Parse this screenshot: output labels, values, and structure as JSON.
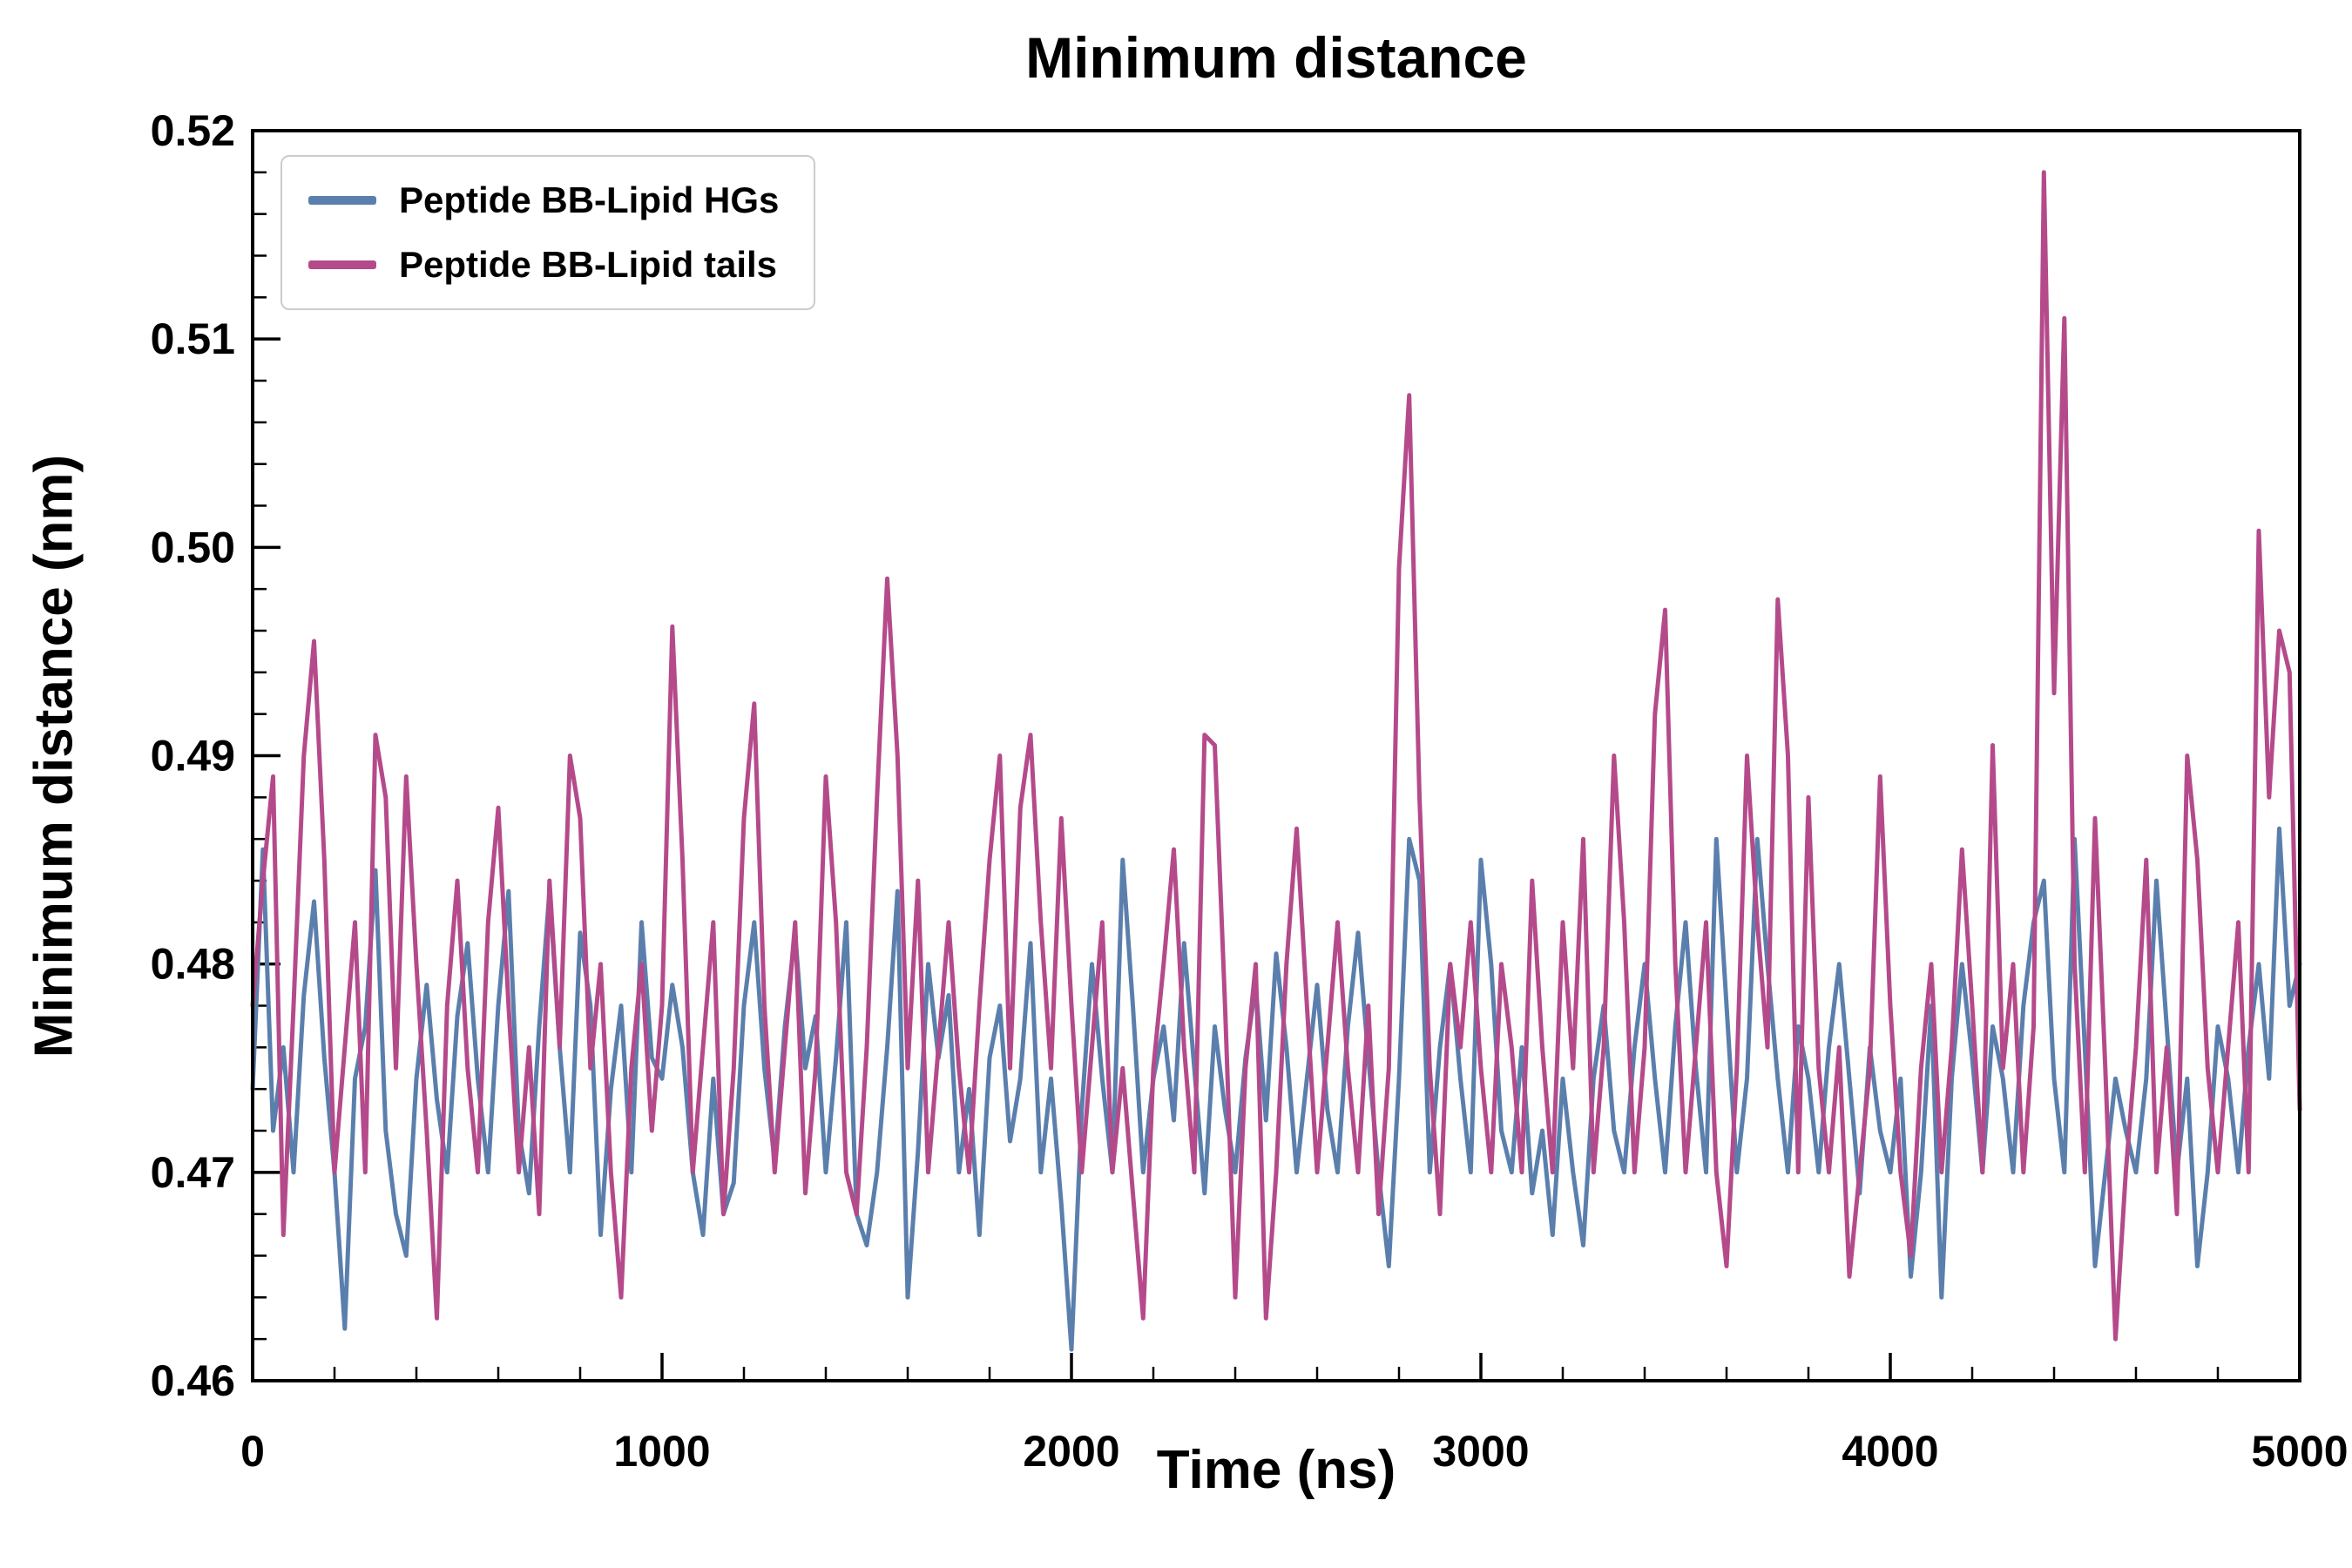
{
  "figure": {
    "background": "#ffffff"
  },
  "chart_data": {
    "type": "line",
    "title": "Minimum distance",
    "xlabel": "Time (ns)",
    "ylabel": "Minimum distance (nm)",
    "xlim": [
      0,
      5000
    ],
    "ylim": [
      0.46,
      0.52
    ],
    "x_ticks": [
      0,
      1000,
      2000,
      3000,
      4000,
      5000
    ],
    "x_tick_labels": [
      "0",
      "1000",
      "2000",
      "3000",
      "4000",
      "5000"
    ],
    "y_ticks": [
      0.46,
      0.47,
      0.48,
      0.49,
      0.5,
      0.51,
      0.52
    ],
    "y_tick_labels": [
      "0.46",
      "0.47",
      "0.48",
      "0.49",
      "0.50",
      "0.51",
      "0.52"
    ],
    "x_minor_step": 200,
    "y_minor_step": 0.002,
    "grid": false,
    "legend_position": "upper left",
    "x": [
      0,
      25,
      50,
      75,
      100,
      125,
      150,
      175,
      200,
      225,
      250,
      275,
      300,
      325,
      350,
      375,
      400,
      425,
      450,
      475,
      500,
      525,
      550,
      575,
      600,
      625,
      650,
      675,
      700,
      725,
      750,
      775,
      800,
      825,
      850,
      875,
      900,
      925,
      950,
      975,
      1000,
      1025,
      1050,
      1075,
      1100,
      1125,
      1150,
      1175,
      1200,
      1225,
      1250,
      1275,
      1300,
      1325,
      1350,
      1375,
      1400,
      1425,
      1450,
      1475,
      1500,
      1525,
      1550,
      1575,
      1600,
      1625,
      1650,
      1675,
      1700,
      1725,
      1750,
      1775,
      1800,
      1825,
      1850,
      1875,
      1900,
      1925,
      1950,
      1975,
      2000,
      2025,
      2050,
      2075,
      2100,
      2125,
      2150,
      2175,
      2200,
      2225,
      2250,
      2275,
      2300,
      2325,
      2350,
      2375,
      2400,
      2425,
      2450,
      2475,
      2500,
      2525,
      2550,
      2575,
      2600,
      2625,
      2650,
      2675,
      2700,
      2725,
      2750,
      2775,
      2800,
      2825,
      2850,
      2875,
      2900,
      2925,
      2950,
      2975,
      3000,
      3025,
      3050,
      3075,
      3100,
      3125,
      3150,
      3175,
      3200,
      3225,
      3250,
      3275,
      3300,
      3325,
      3350,
      3375,
      3400,
      3425,
      3450,
      3475,
      3500,
      3525,
      3550,
      3575,
      3600,
      3625,
      3650,
      3675,
      3700,
      3725,
      3750,
      3775,
      3800,
      3825,
      3850,
      3875,
      3900,
      3925,
      3950,
      3975,
      4000,
      4025,
      4050,
      4075,
      4100,
      4125,
      4150,
      4175,
      4200,
      4225,
      4250,
      4275,
      4300,
      4325,
      4350,
      4375,
      4400,
      4425,
      4450,
      4475,
      4500,
      4525,
      4550,
      4575,
      4600,
      4625,
      4650,
      4675,
      4700,
      4725,
      4750,
      4775,
      4800,
      4825,
      4850,
      4875,
      4900,
      4925,
      4950,
      4975,
      5000
    ],
    "series": [
      {
        "name": "Peptide BB-Lipid HGs",
        "color": "#5b7fad",
        "values": [
          0.474,
          0.4855,
          0.472,
          0.476,
          0.47,
          0.4785,
          0.483,
          0.4755,
          0.47,
          0.4625,
          0.4745,
          0.477,
          0.4845,
          0.472,
          0.468,
          0.466,
          0.4745,
          0.479,
          0.4735,
          0.47,
          0.4775,
          0.481,
          0.4745,
          0.47,
          0.478,
          0.4835,
          0.472,
          0.469,
          0.477,
          0.4835,
          0.476,
          0.47,
          0.4815,
          0.478,
          0.467,
          0.474,
          0.478,
          0.47,
          0.482,
          0.4755,
          0.4745,
          0.479,
          0.476,
          0.47,
          0.467,
          0.4745,
          0.468,
          0.4695,
          0.478,
          0.482,
          0.475,
          0.4705,
          0.477,
          0.4815,
          0.475,
          0.4775,
          0.47,
          0.4755,
          0.482,
          0.468,
          0.4665,
          0.47,
          0.476,
          0.4835,
          0.464,
          0.471,
          0.48,
          0.4755,
          0.4785,
          0.47,
          0.474,
          0.467,
          0.4755,
          0.478,
          0.4715,
          0.4745,
          0.481,
          0.47,
          0.4745,
          0.4685,
          0.4615,
          0.473,
          0.48,
          0.4745,
          0.47,
          0.485,
          0.478,
          0.47,
          0.4745,
          0.477,
          0.4725,
          0.481,
          0.475,
          0.469,
          0.477,
          0.473,
          0.47,
          0.4755,
          0.479,
          0.4725,
          0.4805,
          0.476,
          0.47,
          0.4745,
          0.479,
          0.473,
          0.47,
          0.477,
          0.4815,
          0.4755,
          0.47,
          0.4655,
          0.4745,
          0.486,
          0.484,
          0.47,
          0.476,
          0.48,
          0.4745,
          0.47,
          0.485,
          0.48,
          0.472,
          0.47,
          0.476,
          0.469,
          0.472,
          0.467,
          0.4745,
          0.47,
          0.4665,
          0.4745,
          0.478,
          0.472,
          0.47,
          0.476,
          0.48,
          0.4745,
          0.47,
          0.477,
          0.482,
          0.475,
          0.47,
          0.486,
          0.478,
          0.47,
          0.4745,
          0.486,
          0.48,
          0.4745,
          0.47,
          0.477,
          0.4745,
          0.47,
          0.476,
          0.48,
          0.4745,
          0.469,
          0.476,
          0.472,
          0.47,
          0.4745,
          0.465,
          0.47,
          0.478,
          0.464,
          0.4745,
          0.48,
          0.4755,
          0.47,
          0.477,
          0.4745,
          0.47,
          0.478,
          0.482,
          0.484,
          0.4745,
          0.47,
          0.486,
          0.476,
          0.4655,
          0.47,
          0.4745,
          0.472,
          0.47,
          0.4745,
          0.484,
          0.477,
          0.47,
          0.4745,
          0.4655,
          0.47,
          0.477,
          0.4745,
          0.47,
          0.476,
          0.48,
          0.4745,
          0.4865,
          0.478,
          0.48
        ]
      },
      {
        "name": "Peptide BB-Lipid tails",
        "color": "#b54a8b",
        "values": [
          0.478,
          0.484,
          0.489,
          0.467,
          0.478,
          0.49,
          0.4955,
          0.485,
          0.47,
          0.476,
          0.482,
          0.47,
          0.491,
          0.488,
          0.475,
          0.489,
          0.48,
          0.472,
          0.463,
          0.478,
          0.484,
          0.475,
          0.47,
          0.482,
          0.4875,
          0.478,
          0.47,
          0.476,
          0.468,
          0.484,
          0.476,
          0.49,
          0.487,
          0.475,
          0.48,
          0.47,
          0.464,
          0.475,
          0.48,
          0.472,
          0.478,
          0.4962,
          0.485,
          0.47,
          0.476,
          0.482,
          0.468,
          0.475,
          0.487,
          0.4925,
          0.478,
          0.47,
          0.476,
          0.482,
          0.469,
          0.475,
          0.489,
          0.482,
          0.47,
          0.468,
          0.476,
          0.488,
          0.4985,
          0.49,
          0.475,
          0.484,
          0.47,
          0.476,
          0.482,
          0.475,
          0.47,
          0.478,
          0.485,
          0.49,
          0.475,
          0.4875,
          0.491,
          0.482,
          0.475,
          0.487,
          0.478,
          0.47,
          0.476,
          0.482,
          0.47,
          0.475,
          0.469,
          0.463,
          0.475,
          0.48,
          0.4855,
          0.476,
          0.47,
          0.491,
          0.4905,
          0.478,
          0.464,
          0.475,
          0.48,
          0.463,
          0.47,
          0.48,
          0.4865,
          0.478,
          0.47,
          0.476,
          0.482,
          0.475,
          0.47,
          0.478,
          0.468,
          0.475,
          0.499,
          0.5073,
          0.488,
          0.475,
          0.468,
          0.48,
          0.476,
          0.482,
          0.475,
          0.47,
          0.48,
          0.476,
          0.47,
          0.484,
          0.476,
          0.47,
          0.482,
          0.475,
          0.486,
          0.47,
          0.476,
          0.49,
          0.482,
          0.47,
          0.476,
          0.492,
          0.497,
          0.48,
          0.47,
          0.476,
          0.482,
          0.47,
          0.4655,
          0.475,
          0.49,
          0.482,
          0.476,
          0.4975,
          0.49,
          0.47,
          0.488,
          0.475,
          0.47,
          0.476,
          0.465,
          0.47,
          0.475,
          0.489,
          0.478,
          0.47,
          0.466,
          0.475,
          0.48,
          0.47,
          0.476,
          0.4855,
          0.478,
          0.47,
          0.4905,
          0.475,
          0.48,
          0.47,
          0.477,
          0.518,
          0.493,
          0.511,
          0.48,
          0.47,
          0.487,
          0.475,
          0.462,
          0.47,
          0.476,
          0.485,
          0.47,
          0.476,
          0.468,
          0.49,
          0.485,
          0.475,
          0.47,
          0.476,
          0.482,
          0.47,
          0.5008,
          0.488,
          0.496,
          0.494,
          0.473
        ]
      }
    ]
  }
}
